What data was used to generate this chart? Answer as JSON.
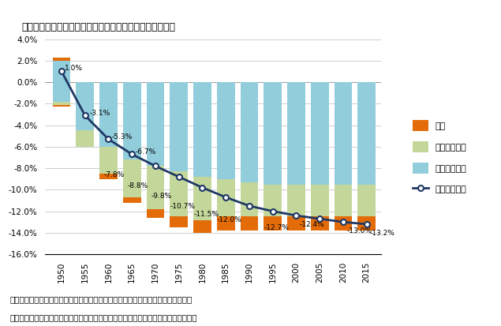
{
  "title": "『図1　年金・医療・介護全体における生涯純受給率』",
  "years": [
    1950,
    1955,
    1960,
    1965,
    1970,
    1975,
    1980,
    1985,
    1990,
    1995,
    2000,
    2005,
    2010,
    2015
  ],
  "pension": [
    1.8,
    4.5,
    6.0,
    7.2,
    7.8,
    8.3,
    8.8,
    9.0,
    9.3,
    9.5,
    9.5,
    9.5,
    9.5,
    9.5
  ],
  "medical": [
    0.3,
    1.5,
    2.5,
    3.5,
    4.0,
    4.2,
    4.0,
    3.5,
    3.2,
    3.0,
    3.0,
    3.0,
    3.0,
    3.0
  ],
  "nursing": [
    0.2,
    0.0,
    0.5,
    0.5,
    0.8,
    1.0,
    1.2,
    1.3,
    1.3,
    1.3,
    1.3,
    1.3,
    1.3,
    1.3
  ],
  "pension_top": [
    2.3,
    0.0,
    0.0,
    0.0,
    0.0,
    0.0,
    0.0,
    0.0,
    0.0,
    0.0,
    0.0,
    0.0,
    0.0,
    0.0
  ],
  "nursing_top": [
    0.0,
    0.0,
    0.0,
    0.0,
    0.0,
    0.0,
    0.0,
    0.0,
    0.0,
    0.0,
    0.0,
    0.0,
    0.0,
    0.0
  ],
  "line_values": [
    1.0,
    -3.1,
    -5.3,
    -6.7,
    -7.8,
    -8.8,
    -9.8,
    -10.7,
    -11.5,
    -12.0,
    -12.4,
    -12.7,
    -13.0,
    -13.2
  ],
  "color_pension": "#92CDDC",
  "color_medical": "#C4D79B",
  "color_nursing": "#E36C09",
  "color_line": "#1F3864",
  "bar_total": 14.0,
  "ylim_min": -16.0,
  "ylim_max": 4.0,
  "yticks": [
    4.0,
    2.0,
    0.0,
    -2.0,
    -4.0,
    -6.0,
    -8.0,
    -10.0,
    -12.0,
    -14.0,
    -16.0
  ],
  "legend_nursing": "介護",
  "legend_medical": "医療（組合）",
  "legend_pension": "年金（厚生）",
  "legend_line": "生涯純受給率",
  "title_text": "『図１　年金・医療・介護全体における生涯純受給率』",
  "note1": "注１：生涯純受給率＝（生涯総受給－（生涯保険料＋生涯自己負担））／生涯収入",
  "note2": "注２：男女計。年金は厚生年金、医療・介護は組合健保の加入者をベースとして算出"
}
